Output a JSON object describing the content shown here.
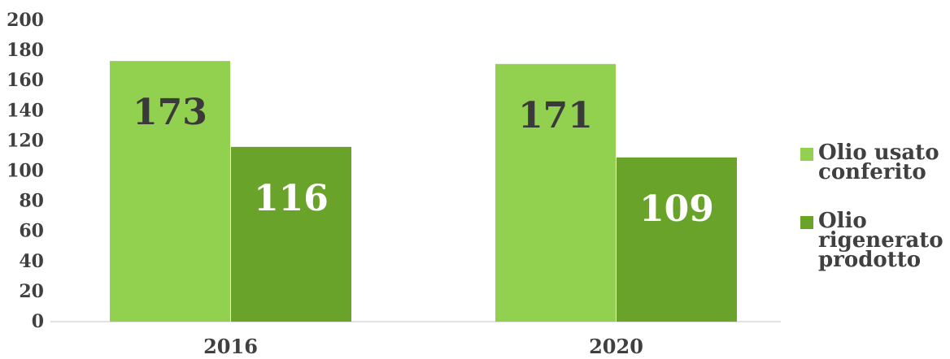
{
  "chart_data": {
    "type": "bar",
    "categories": [
      "2016",
      "2020"
    ],
    "series": [
      {
        "name": "Olio usato conferito",
        "values": [
          173,
          171
        ],
        "color": "#92d050",
        "label_color": "#3a3a3a"
      },
      {
        "name": "Olio rigenerato prodotto",
        "values": [
          116,
          109
        ],
        "color": "#6aa329",
        "label_color": "#ffffff"
      }
    ],
    "ylim": [
      0,
      200
    ],
    "yticks": [
      0,
      20,
      40,
      60,
      80,
      100,
      120,
      140,
      160,
      180,
      200
    ],
    "grid": false,
    "legend_position": "right",
    "legend_lines": [
      [
        "Olio usato",
        "conferito"
      ],
      [
        "Olio",
        "rigenerato",
        "prodotto"
      ]
    ]
  }
}
